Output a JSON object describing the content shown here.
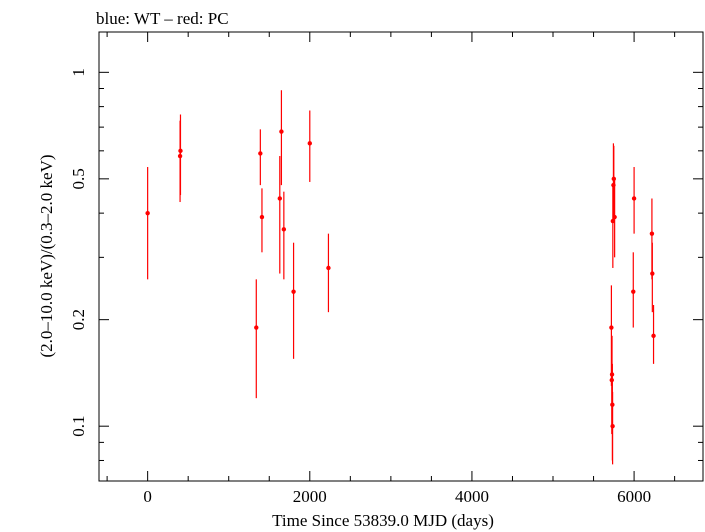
{
  "chart_data": {
    "type": "scatter",
    "title": "blue: WT – red: PC",
    "xlabel": "Time Since 53839.0 MJD (days)",
    "ylabel": "(2.0–10.0 keV)/(0.3–2.0 keV)",
    "y_scale": "log",
    "xlim": [
      -600,
      6850
    ],
    "ylim": [
      0.07,
      1.3
    ],
    "x_ticks": [
      0,
      2000,
      4000,
      6000
    ],
    "x_tick_labels": [
      "0",
      "2000",
      "4000",
      "6000"
    ],
    "y_ticks": [
      0.1,
      0.2,
      0.5,
      1
    ],
    "y_tick_labels": [
      "0.1",
      "0.2",
      "0.5",
      "1"
    ],
    "grid": false,
    "colors": {
      "PC": "#ff0000",
      "WT": "#0000ff",
      "axes": "#000000"
    },
    "series": [
      {
        "name": "PC",
        "color": "#ff0000",
        "points": [
          {
            "x": 0,
            "y": 0.4,
            "ylo": 0.26,
            "yhi": 0.54
          },
          {
            "x": 400,
            "y": 0.58,
            "ylo": 0.43,
            "yhi": 0.73
          },
          {
            "x": 405,
            "y": 0.6,
            "ylo": 0.45,
            "yhi": 0.76
          },
          {
            "x": 1340,
            "y": 0.19,
            "ylo": 0.12,
            "yhi": 0.26
          },
          {
            "x": 1390,
            "y": 0.59,
            "ylo": 0.48,
            "yhi": 0.69
          },
          {
            "x": 1410,
            "y": 0.39,
            "ylo": 0.31,
            "yhi": 0.47
          },
          {
            "x": 1630,
            "y": 0.44,
            "ylo": 0.27,
            "yhi": 0.58
          },
          {
            "x": 1650,
            "y": 0.68,
            "ylo": 0.48,
            "yhi": 0.89
          },
          {
            "x": 1680,
            "y": 0.36,
            "ylo": 0.26,
            "yhi": 0.46
          },
          {
            "x": 1800,
            "y": 0.24,
            "ylo": 0.155,
            "yhi": 0.33
          },
          {
            "x": 2000,
            "y": 0.63,
            "ylo": 0.49,
            "yhi": 0.78
          },
          {
            "x": 2230,
            "y": 0.28,
            "ylo": 0.21,
            "yhi": 0.35
          },
          {
            "x": 5720,
            "y": 0.19,
            "ylo": 0.13,
            "yhi": 0.25
          },
          {
            "x": 5725,
            "y": 0.135,
            "ylo": 0.095,
            "yhi": 0.18
          },
          {
            "x": 5728,
            "y": 0.14,
            "ylo": 0.1,
            "yhi": 0.18
          },
          {
            "x": 5732,
            "y": 0.115,
            "ylo": 0.08,
            "yhi": 0.15
          },
          {
            "x": 5735,
            "y": 0.1,
            "ylo": 0.078,
            "yhi": 0.125
          },
          {
            "x": 5738,
            "y": 0.38,
            "ylo": 0.28,
            "yhi": 0.48
          },
          {
            "x": 5745,
            "y": 0.48,
            "ylo": 0.38,
            "yhi": 0.63
          },
          {
            "x": 5750,
            "y": 0.5,
            "ylo": 0.39,
            "yhi": 0.62
          },
          {
            "x": 5760,
            "y": 0.39,
            "ylo": 0.3,
            "yhi": 0.5
          },
          {
            "x": 5990,
            "y": 0.24,
            "ylo": 0.19,
            "yhi": 0.31
          },
          {
            "x": 6000,
            "y": 0.44,
            "ylo": 0.35,
            "yhi": 0.54
          },
          {
            "x": 6220,
            "y": 0.35,
            "ylo": 0.26,
            "yhi": 0.44
          },
          {
            "x": 6225,
            "y": 0.27,
            "ylo": 0.21,
            "yhi": 0.33
          },
          {
            "x": 6240,
            "y": 0.18,
            "ylo": 0.15,
            "yhi": 0.22
          }
        ]
      }
    ]
  }
}
